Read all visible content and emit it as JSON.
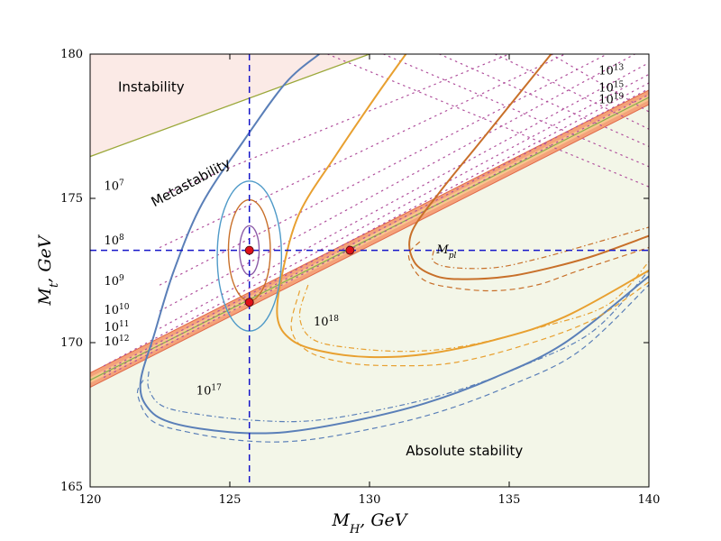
{
  "chart_data": {
    "type": "line",
    "xlabel_main": "M",
    "xlabel_sub": "H",
    "xlabel_unit": ", GeV",
    "ylabel_main": "M",
    "ylabel_sub": "t",
    "ylabel_unit": ", GeV",
    "xlim": [
      120,
      140
    ],
    "ylim": [
      165,
      180
    ],
    "x_ticks": [
      120,
      125,
      130,
      135,
      140
    ],
    "y_ticks": [
      165,
      170,
      175,
      180
    ],
    "grid": false,
    "colors": {
      "instability_fill": "#fbeae6",
      "stability_fill": "#f3f6e8",
      "band_outer": "#f4a27a",
      "band_inner": "#f8c58e",
      "band_line": "#86b04c",
      "blue": "#5a7fb8",
      "orange": "#e8a030",
      "brown": "#c8702a",
      "purple": "#8c5ba8",
      "ellipse_outer": "#4f9ac8",
      "crosshair": "#1515c8",
      "marker_fill": "#e0101a",
      "olive": "#9ba83a",
      "dotted": "#b04f9c"
    },
    "regions": [
      {
        "label": "Instability",
        "x": 121,
        "y": 178.7
      },
      {
        "label": "Metastability",
        "x": 122.3,
        "y": 174.7,
        "rotate": -28
      },
      {
        "label": "Absolute stability",
        "x": 131.3,
        "y": 166.1
      }
    ],
    "crosshair": {
      "x": 125.7,
      "y": 173.2
    },
    "points": [
      {
        "x": 125.7,
        "y": 173.2
      },
      {
        "x": 125.7,
        "y": 171.4
      },
      {
        "x": 129.3,
        "y": 173.2
      }
    ],
    "stability_band": {
      "lower_line": [
        [
          120,
          168.45
        ],
        [
          140,
          178.25
        ]
      ],
      "upper_line": [
        [
          120,
          168.95
        ],
        [
          140,
          178.75
        ]
      ]
    },
    "olive_line": [
      [
        120,
        176.45
      ],
      [
        130,
        180
      ]
    ],
    "dotted_lines": [
      {
        "label": "10",
        "exp": "7",
        "label_x": 120.5,
        "label_y": 175.3,
        "points": [
          [
            122.8,
            175.2
          ],
          [
            135,
            180
          ]
        ]
      },
      {
        "label": "10",
        "exp": "8",
        "label_x": 120.5,
        "label_y": 173.4,
        "points": [
          [
            122.5,
            173.3
          ],
          [
            137,
            180
          ]
        ]
      },
      {
        "label": "10",
        "exp": "9",
        "label_x": 120.5,
        "label_y": 172.0,
        "points": [
          [
            122.5,
            172.0
          ],
          [
            138.5,
            180
          ]
        ]
      },
      {
        "label": "10",
        "exp": "10",
        "label_x": 120.5,
        "label_y": 171.0,
        "points": [
          [
            122.5,
            171.1
          ],
          [
            139.5,
            180
          ]
        ]
      },
      {
        "label": "10",
        "exp": "11",
        "label_x": 120.5,
        "label_y": 170.4,
        "points": [
          [
            122.5,
            170.5
          ],
          [
            140,
            179.7
          ]
        ]
      },
      {
        "label": "10",
        "exp": "12",
        "label_x": 120.5,
        "label_y": 169.9,
        "points": [
          [
            120.5,
            169.2
          ],
          [
            140,
            179.3
          ]
        ]
      },
      {
        "label": "10",
        "exp": "13",
        "label_x": 138.2,
        "label_y": 179.3,
        "points": [
          [
            120.5,
            169.0
          ],
          [
            140,
            179.0
          ]
        ]
      },
      {
        "label": "10",
        "exp": "15",
        "label_x": 138.2,
        "label_y": 178.7,
        "points": [
          [
            120.5,
            168.9
          ],
          [
            140,
            178.8
          ]
        ]
      },
      {
        "label": "10",
        "exp": "19",
        "label_x": 138.2,
        "label_y": 178.3,
        "points": [
          [
            120.5,
            168.8
          ],
          [
            140,
            178.6
          ]
        ]
      }
    ],
    "dotted_extra": [
      [
        [
          128.5,
          180
        ],
        [
          140,
          175.4
        ]
      ],
      [
        [
          130.5,
          180
        ],
        [
          140,
          176.1
        ]
      ],
      [
        [
          132.5,
          180
        ],
        [
          140,
          176.8
        ]
      ],
      [
        [
          134.5,
          180
        ],
        [
          140,
          177.4
        ]
      ],
      [
        [
          136.5,
          180
        ],
        [
          140,
          178.0
        ]
      ]
    ],
    "contours": [
      {
        "name": "blue",
        "label": "10",
        "exp": "17",
        "label_x": 123.8,
        "label_y": 168.2,
        "solid": [
          [
            128.2,
            180
          ],
          [
            127,
            179
          ],
          [
            125.5,
            177
          ],
          [
            124,
            174.8
          ],
          [
            123,
            172.5
          ],
          [
            122.3,
            170.3
          ],
          [
            121.8,
            168.6
          ],
          [
            122.1,
            167.7
          ],
          [
            123,
            167.2
          ],
          [
            125,
            166.9
          ],
          [
            127,
            166.9
          ],
          [
            129.5,
            167.3
          ],
          [
            132,
            167.9
          ],
          [
            134.5,
            168.8
          ],
          [
            137,
            170
          ],
          [
            140,
            172.3
          ]
        ],
        "dashed": [
          [
            121.9,
            168.7
          ],
          [
            121.7,
            168.2
          ],
          [
            122.2,
            167.3
          ],
          [
            123.5,
            166.9
          ],
          [
            125.5,
            166.6
          ],
          [
            127.5,
            166.6
          ],
          [
            130,
            167
          ],
          [
            132.5,
            167.6
          ],
          [
            135,
            168.5
          ],
          [
            137.5,
            169.7
          ],
          [
            140,
            172
          ]
        ],
        "dashdot": [
          [
            122.1,
            169
          ],
          [
            122.1,
            168.4
          ],
          [
            122.6,
            167.8
          ],
          [
            124,
            167.5
          ],
          [
            126,
            167.3
          ],
          [
            128,
            167.3
          ],
          [
            130.5,
            167.7
          ],
          [
            133,
            168.3
          ],
          [
            135.5,
            169.2
          ],
          [
            138,
            170.4
          ],
          [
            140,
            172.5
          ]
        ]
      },
      {
        "name": "orange",
        "label": "10",
        "exp": "18",
        "label_x": 128.0,
        "label_y": 170.6,
        "solid": [
          [
            131.3,
            180
          ],
          [
            130.2,
            178.5
          ],
          [
            128.8,
            176.5
          ],
          [
            127.5,
            174.5
          ],
          [
            126.9,
            172.5
          ],
          [
            126.7,
            170.9
          ],
          [
            127.2,
            170.1
          ],
          [
            128.3,
            169.7
          ],
          [
            130,
            169.5
          ],
          [
            132,
            169.6
          ],
          [
            134.5,
            170.1
          ],
          [
            137,
            170.9
          ],
          [
            140,
            172.5
          ]
        ],
        "dashed": [
          [
            127.5,
            171.8
          ],
          [
            127.2,
            170.5
          ],
          [
            127.8,
            169.7
          ],
          [
            129.2,
            169.3
          ],
          [
            131,
            169.2
          ],
          [
            133,
            169.3
          ],
          [
            135.5,
            169.9
          ],
          [
            138,
            170.8
          ],
          [
            140,
            172.1
          ]
        ],
        "dashdot": [
          [
            127.8,
            172
          ],
          [
            127.5,
            170.9
          ],
          [
            128,
            170.1
          ],
          [
            129.5,
            169.8
          ],
          [
            131.5,
            169.7
          ],
          [
            133.5,
            169.9
          ],
          [
            136,
            170.5
          ],
          [
            138.5,
            171.3
          ],
          [
            140,
            172.8
          ]
        ]
      },
      {
        "name": "brown",
        "label": "M",
        "sub": "pl",
        "label_x": 132.4,
        "label_y": 173.1,
        "solid": [
          [
            136.5,
            180
          ],
          [
            135.5,
            178.8
          ],
          [
            134,
            177
          ],
          [
            132.5,
            175.2
          ],
          [
            131.5,
            173.8
          ],
          [
            131.6,
            172.8
          ],
          [
            132.4,
            172.3
          ],
          [
            133.5,
            172.2
          ],
          [
            135,
            172.3
          ],
          [
            136.5,
            172.6
          ],
          [
            138,
            173
          ],
          [
            140,
            173.7
          ]
        ],
        "dashed": [
          [
            131.8,
            173.5
          ],
          [
            131.4,
            173.0
          ],
          [
            131.9,
            172.2
          ],
          [
            133,
            171.9
          ],
          [
            134.5,
            171.8
          ],
          [
            136,
            172
          ],
          [
            137.5,
            172.5
          ],
          [
            140,
            173.3
          ]
        ],
        "dashdot": [
          [
            132.3,
            173.2
          ],
          [
            132.3,
            172.8
          ],
          [
            133,
            172.6
          ],
          [
            134.5,
            172.6
          ],
          [
            136,
            172.9
          ],
          [
            137.5,
            173.3
          ],
          [
            140,
            174.0
          ]
        ]
      }
    ],
    "ellipses": [
      {
        "color": "ellipse_outer",
        "cx": 125.7,
        "cy": 173.0,
        "rx": 1.15,
        "ry": 2.6
      },
      {
        "color": "brown",
        "cx": 125.7,
        "cy": 173.2,
        "rx": 0.75,
        "ry": 1.75
      },
      {
        "color": "purple",
        "cx": 125.7,
        "cy": 173.2,
        "rx": 0.35,
        "ry": 0.85
      }
    ]
  }
}
